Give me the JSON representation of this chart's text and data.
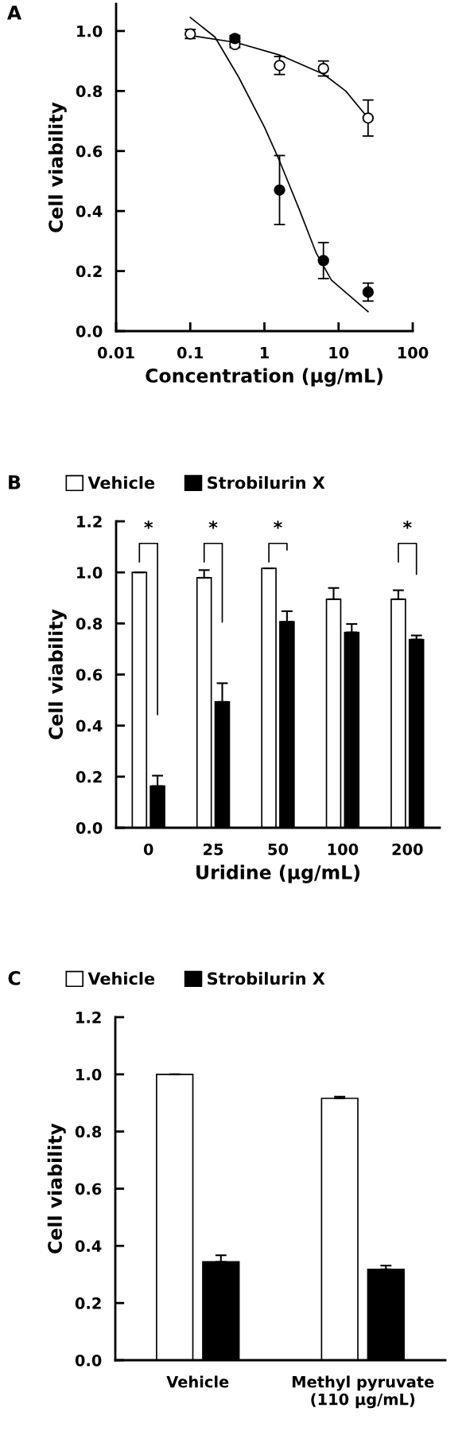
{
  "chart_data": [
    {
      "type": "scatter",
      "title": "A",
      "xlabel": "Concentration (μg/mL)",
      "ylabel": "Cell viability",
      "log": "x",
      "xlim": [
        0.01,
        100
      ],
      "xticks": [
        0.01,
        0.1,
        1,
        10,
        100
      ],
      "ylim": [
        0,
        1.09
      ],
      "yticks": [
        {
          "value": 0,
          "label": "0.0"
        },
        {
          "value": 0.2,
          "label": "0.2"
        },
        {
          "value": 0.4,
          "label": "0.4"
        },
        {
          "value": 0.6,
          "label": "0.6"
        },
        {
          "value": 0.8,
          "label": "0.8"
        },
        {
          "value": 1.0,
          "label": "1.0"
        }
      ],
      "x": [
        0.1,
        0.4,
        1.6,
        6.25,
        25
      ],
      "series": [
        {
          "type": "line",
          "color": "#000000",
          "x": [
            0.1,
            0.41,
            1.6,
            6.3,
            12.5,
            25
          ],
          "values": [
            0.985,
            0.962,
            0.92,
            0.856,
            0.8,
            0.71
          ]
        },
        {
          "type": "line",
          "color": "#000000",
          "x": [
            0.1,
            0.215,
            0.45,
            1,
            1.6,
            2.9,
            5,
            8,
            25
          ],
          "values": [
            1.045,
            0.98,
            0.846,
            0.68,
            0.567,
            0.41,
            0.26,
            0.17,
            0.065
          ]
        },
        {
          "marker": "circle",
          "color": "#ffffff",
          "values": [
            0.99,
            0.955,
            0.885,
            0.875,
            0.71
          ],
          "errors": [
            0.015,
            0.01,
            0.03,
            0.025,
            0.06
          ]
        },
        {
          "marker": "circle",
          "color": "#000000",
          "values": [
            null,
            0.975,
            0.47,
            0.235,
            0.13
          ],
          "errors": [
            null,
            0.01,
            0.115,
            0.06,
            0.03
          ]
        }
      ]
    },
    {
      "type": "bar",
      "title": "B",
      "xlabel": "Uridine (μg/mL)",
      "ylabel": "Cell viability",
      "legend": "top",
      "categories": [
        "0",
        "25",
        "50",
        "100",
        "200"
      ],
      "ylim": [
        0,
        1.2
      ],
      "yticks": [
        {
          "value": 0,
          "label": "0.0"
        },
        {
          "value": 0.2,
          "label": "0.2"
        },
        {
          "value": 0.4,
          "label": "0.4"
        },
        {
          "value": 0.6,
          "label": "0.6"
        },
        {
          "value": 0.8,
          "label": "0.8"
        },
        {
          "value": 1.0,
          "label": "1.0"
        },
        {
          "value": 1.2,
          "label": "1.2"
        }
      ],
      "series": [
        {
          "name": "Vehicle",
          "color": "#ffffff",
          "values": [
            1.0,
            0.979,
            1.016,
            0.895,
            0.895
          ],
          "errors": [
            null,
            [
              0.979,
              1.009
            ],
            null,
            [
              0.895,
              0.939
            ],
            [
              0.895,
              0.93
            ]
          ]
        },
        {
          "name": "Strobilurin X",
          "color": "#000000",
          "values": [
            0.163,
            0.493,
            0.807,
            0.765,
            0.737
          ],
          "errors": [
            [
              0.163,
              0.204
            ],
            [
              0.493,
              0.566
            ],
            [
              0.807,
              0.848
            ],
            [
              0.765,
              0.798
            ],
            [
              0.737,
              0.753
            ]
          ]
        }
      ],
      "annotations": [
        "*",
        "*",
        "*",
        "*"
      ]
    },
    {
      "type": "bar",
      "title": "C",
      "ylabel": "Cell viability",
      "legend": "top",
      "categories": [
        "Vehicle",
        "Methyl pyruvate\n(110 μg/mL)"
      ],
      "ylim": [
        0,
        1.2
      ],
      "yticks": [
        {
          "value": 0,
          "label": "0.0"
        },
        {
          "value": 0.2,
          "label": "0.2"
        },
        {
          "value": 0.4,
          "label": "0.4"
        },
        {
          "value": 0.6,
          "label": "0.6"
        },
        {
          "value": 0.8,
          "label": "0.8"
        },
        {
          "value": 1.0,
          "label": "1.0"
        },
        {
          "value": 1.2,
          "label": "1.2"
        }
      ],
      "series": [
        {
          "name": "Vehicle",
          "color": "#ffffff",
          "values": [
            1.0,
            0.916
          ],
          "errors": [
            null,
            [
              0.916,
              0.922
            ]
          ]
        },
        {
          "name": "Strobilurin X",
          "color": "#000000",
          "values": [
            0.344,
            0.318
          ],
          "errors": [
            [
              0.344,
              0.367
            ],
            [
              0.318,
              0.331
            ]
          ]
        }
      ]
    }
  ]
}
